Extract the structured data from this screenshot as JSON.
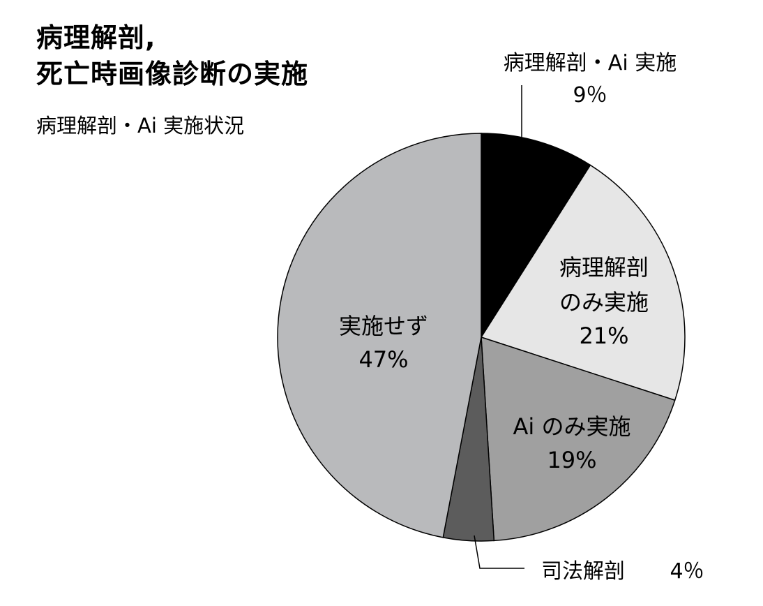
{
  "header": {
    "title_line1": "病理解剖,",
    "title_line2": "死亡時画像診断の実施",
    "subtitle": "病理解剖・Ai 実施状況"
  },
  "chart_data": {
    "type": "pie",
    "title": "病理解剖, 死亡時画像診断の実施",
    "subtitle": "病理解剖・Ai 実施状況",
    "start": "12 o'clock, clockwise",
    "slices": [
      {
        "name": "病理解剖・Ai 実施",
        "value": 9,
        "value_label": "9％",
        "label_lines": [
          "病理解剖・Ai 実施"
        ],
        "label_position": "outside-top",
        "color": "#000000"
      },
      {
        "name": "病理解剖のみ実施",
        "value": 21,
        "value_label": "21%",
        "label_lines": [
          "病理解剖",
          "のみ実施"
        ],
        "label_position": "inside",
        "color": "#e6e6e6"
      },
      {
        "name": "Ai のみ実施",
        "value": 19,
        "value_label": "19%",
        "label_lines": [
          "Ai のみ実施"
        ],
        "label_position": "inside",
        "color": "#a0a0a0"
      },
      {
        "name": "司法解剖",
        "value": 4,
        "value_label": "4％",
        "label_lines": [
          "司法解剖"
        ],
        "label_position": "outside-bottom",
        "color": "#5c5c5c"
      },
      {
        "name": "実施せず",
        "value": 47,
        "value_label": "47%",
        "label_lines": [
          "実施せず"
        ],
        "label_position": "inside",
        "color": "#b9babc"
      }
    ]
  }
}
